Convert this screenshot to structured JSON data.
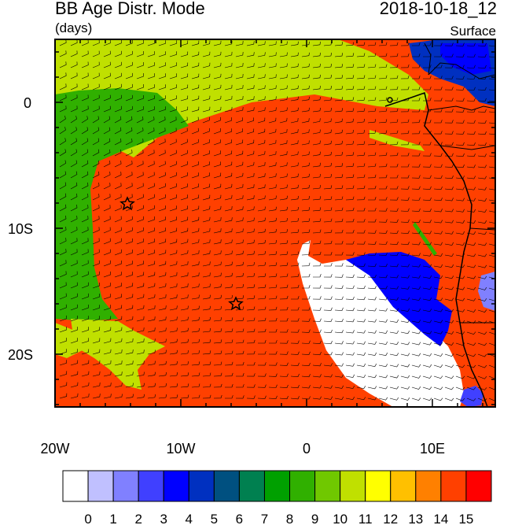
{
  "header": {
    "title": "BB Age Distr. Mode",
    "units": "(days)",
    "date": "2018-10-18_12",
    "level": "Surface"
  },
  "axes": {
    "lon_labels": [
      "20W",
      "10W",
      "0",
      "10E"
    ],
    "lat_labels": [
      "0",
      "10S",
      "20S"
    ],
    "lon_range": [
      -20,
      15
    ],
    "lat_range": [
      -24,
      4.5
    ]
  },
  "colorbar": {
    "labels": [
      "0",
      "1",
      "2",
      "3",
      "4",
      "5",
      "6",
      "7",
      "8",
      "9",
      "10",
      "11",
      "12",
      "13",
      "14",
      "15"
    ],
    "colors": [
      "#ffffff",
      "#c0c0ff",
      "#8080ff",
      "#4040ff",
      "#0000ff",
      "#0030c0",
      "#005080",
      "#008050",
      "#00a000",
      "#30b000",
      "#70c800",
      "#c0e000",
      "#ffff00",
      "#ffc000",
      "#ff8000",
      "#ff4000",
      "#ff0000"
    ]
  },
  "map_colors": {
    "ocean_main": "#ff4000",
    "green": "#30b000",
    "lime": "#c0e000",
    "blue": "#0000ff",
    "navy": "#0030c0",
    "white": "#ffffff"
  },
  "markers": {
    "star_icon": "star-icon"
  }
}
